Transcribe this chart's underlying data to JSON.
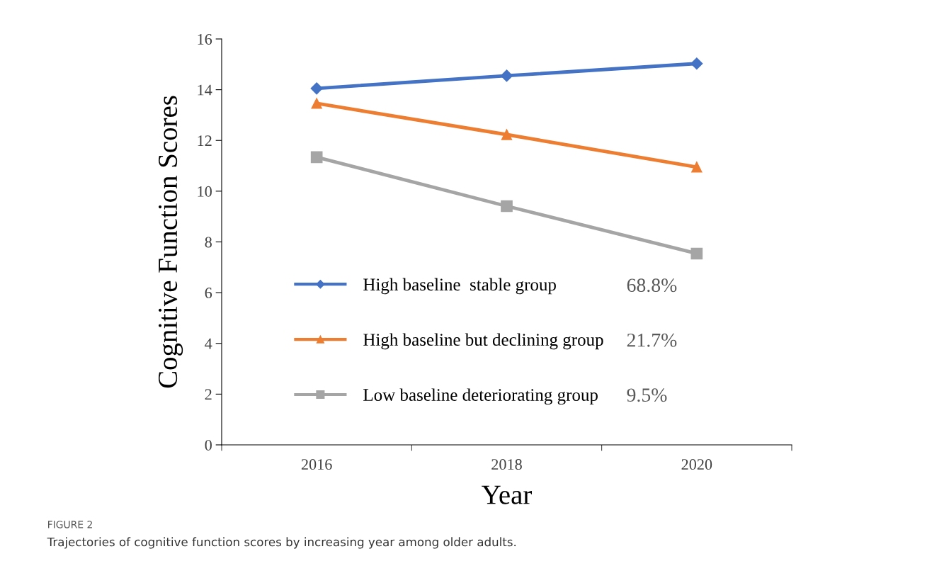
{
  "chart_data": {
    "type": "line",
    "xlabel": "Year",
    "ylabel": "Cognitive Function Scores",
    "categories": [
      "2016",
      "2018",
      "2020"
    ],
    "series": [
      {
        "name": "High baseline  stable group",
        "color": "#4472c4",
        "marker": "diamond",
        "values": [
          14.05,
          14.55,
          15.03
        ]
      },
      {
        "name": "High baseline but declining group",
        "color": "#ed7d31",
        "marker": "triangle",
        "values": [
          13.46,
          12.23,
          10.95
        ]
      },
      {
        "name": "Low baseline deteriorating group",
        "color": "#a5a5a5",
        "marker": "square",
        "values": [
          11.34,
          9.41,
          7.54
        ]
      }
    ],
    "ylim": [
      0,
      16
    ],
    "yticks": [
      0,
      2,
      4,
      6,
      8,
      10,
      12,
      14,
      16
    ],
    "grid": false,
    "legend": "bottom",
    "line_style": "solid",
    "annotations": [
      "68.8%",
      "21.7%",
      "9.5%",
      "FIGURE 2",
      "Trajectories of cognitive function scores by increasing year among older adults."
    ]
  }
}
